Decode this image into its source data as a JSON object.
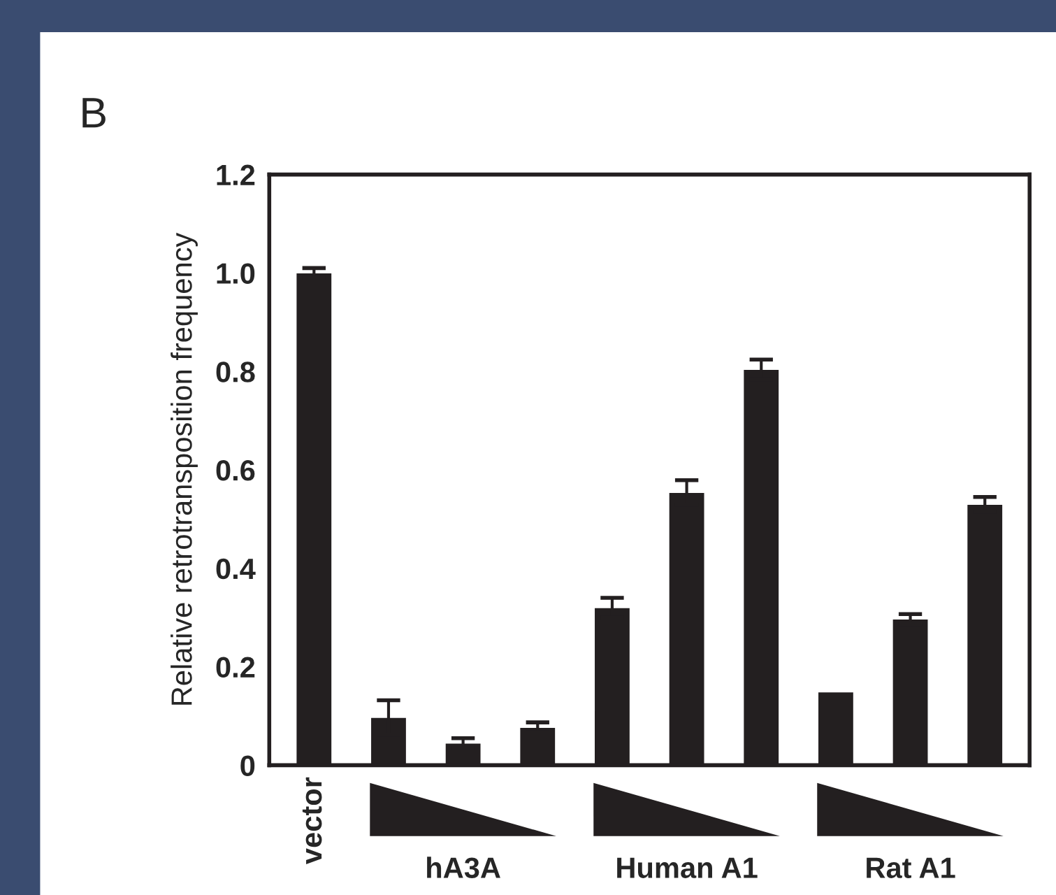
{
  "chart_data": {
    "type": "bar",
    "title": "B",
    "ylabel": "Relative retrotransposition frequency",
    "categories": [
      "vector",
      null,
      null,
      null,
      null,
      null,
      null,
      null,
      null,
      null
    ],
    "values": [
      1.0,
      0.097,
      0.045,
      0.077,
      0.32,
      0.554,
      0.804,
      0.149,
      0.297,
      0.53
    ],
    "errors": [
      0.01,
      0.035,
      0.01,
      0.01,
      0.02,
      0.025,
      0.02,
      null,
      0.01,
      0.015
    ],
    "color": "#231f20",
    "annotations": [
      "hA3A",
      "Human A1",
      "Rat A1"
    ],
    "ylim": [
      0,
      1.2
    ],
    "yticks": [
      {
        "value": 0,
        "label": "0"
      },
      0.2,
      0.4,
      0.6,
      0.8,
      {
        "value": 1.0,
        "label": "1.0"
      },
      1.2
    ],
    "grid": false
  }
}
